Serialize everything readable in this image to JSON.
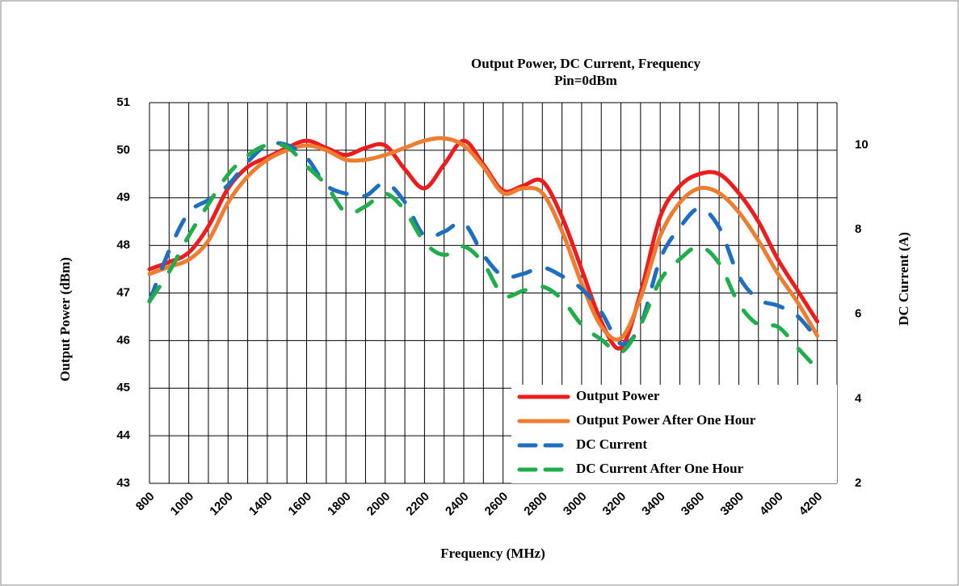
{
  "chart_data": {
    "type": "line",
    "title": "Output Power, DC Current,  Frequency",
    "subtitle": "Pin=0dBm",
    "xlabel": "Frequency (MHz)",
    "ylabel": "Output Power (dBm)",
    "y2label": "DC Current (A)",
    "x": [
      800,
      900,
      1000,
      1100,
      1200,
      1300,
      1400,
      1500,
      1600,
      1700,
      1800,
      1900,
      2000,
      2100,
      2200,
      2300,
      2400,
      2500,
      2600,
      2700,
      2800,
      2900,
      3000,
      3100,
      3200,
      3300,
      3400,
      3500,
      3600,
      3700,
      3800,
      3900,
      4000,
      4100,
      4200
    ],
    "series": [
      {
        "name": "Output Power",
        "color": "#ee1c1c",
        "style": "solid",
        "values": [
          47.5,
          47.65,
          47.85,
          48.4,
          49.2,
          49.65,
          49.85,
          50.05,
          50.2,
          50.05,
          49.9,
          50.05,
          50.1,
          49.6,
          49.2,
          49.7,
          50.2,
          49.7,
          49.15,
          49.25,
          49.35,
          48.6,
          47.5,
          46.4,
          45.85,
          47.0,
          48.6,
          49.25,
          49.5,
          49.5,
          49.1,
          48.5,
          47.7,
          47.05,
          46.4
        ]
      },
      {
        "name": "Output Power After One Hour",
        "color": "#ed7d31",
        "style": "solid",
        "values": [
          47.4,
          47.55,
          47.7,
          48.1,
          48.9,
          49.45,
          49.8,
          50.0,
          50.1,
          50.0,
          49.8,
          49.8,
          49.9,
          50.05,
          50.2,
          50.25,
          50.1,
          49.65,
          49.1,
          49.2,
          49.1,
          48.3,
          47.2,
          46.3,
          46.05,
          46.9,
          48.2,
          48.9,
          49.2,
          49.1,
          48.7,
          48.1,
          47.4,
          46.8,
          46.1
        ]
      },
      {
        "name": "DC Current",
        "color": "#1f6fc0",
        "style": "dashed",
        "axis": "y2",
        "values": [
          6.3,
          7.5,
          8.4,
          8.7,
          9.05,
          9.6,
          10.0,
          10.0,
          9.7,
          9.05,
          8.85,
          8.8,
          9.1,
          8.65,
          7.85,
          7.95,
          8.15,
          7.4,
          6.9,
          6.95,
          7.1,
          6.9,
          6.6,
          6.05,
          5.3,
          5.75,
          7.3,
          8.05,
          8.5,
          8.05,
          6.9,
          6.35,
          6.2,
          5.95,
          5.4
        ]
      },
      {
        "name": "DC Current  After One Hour",
        "color": "#1fae4b",
        "style": "dashed",
        "axis": "y2",
        "values": [
          6.3,
          7.0,
          7.85,
          8.6,
          9.3,
          9.75,
          10.0,
          9.95,
          9.5,
          9.05,
          8.4,
          8.55,
          8.85,
          8.45,
          7.7,
          7.4,
          7.6,
          7.2,
          6.45,
          6.55,
          6.65,
          6.35,
          5.75,
          5.4,
          5.1,
          5.75,
          6.8,
          7.3,
          7.6,
          7.2,
          6.25,
          5.75,
          5.7,
          5.2,
          4.7
        ]
      }
    ],
    "xlim": [
      800,
      4300
    ],
    "xticks": [
      800,
      1000,
      1200,
      1400,
      1600,
      1800,
      2000,
      2200,
      2400,
      2600,
      2800,
      3000,
      3200,
      3400,
      3600,
      3800,
      4000,
      4200
    ],
    "x_minor_ticks": [
      900,
      1100,
      1300,
      1500,
      1700,
      1900,
      2100,
      2300,
      2500,
      2700,
      2900,
      3100,
      3300,
      3500,
      3700,
      3900,
      4100,
      4300
    ],
    "ylim": [
      43,
      51
    ],
    "yticks": [
      43,
      44,
      45,
      46,
      47,
      48,
      49,
      50,
      51
    ],
    "y2lim": [
      2,
      11
    ],
    "y2ticks": [
      2,
      4,
      6,
      8,
      10
    ],
    "grid": true,
    "legend": "lower right"
  }
}
